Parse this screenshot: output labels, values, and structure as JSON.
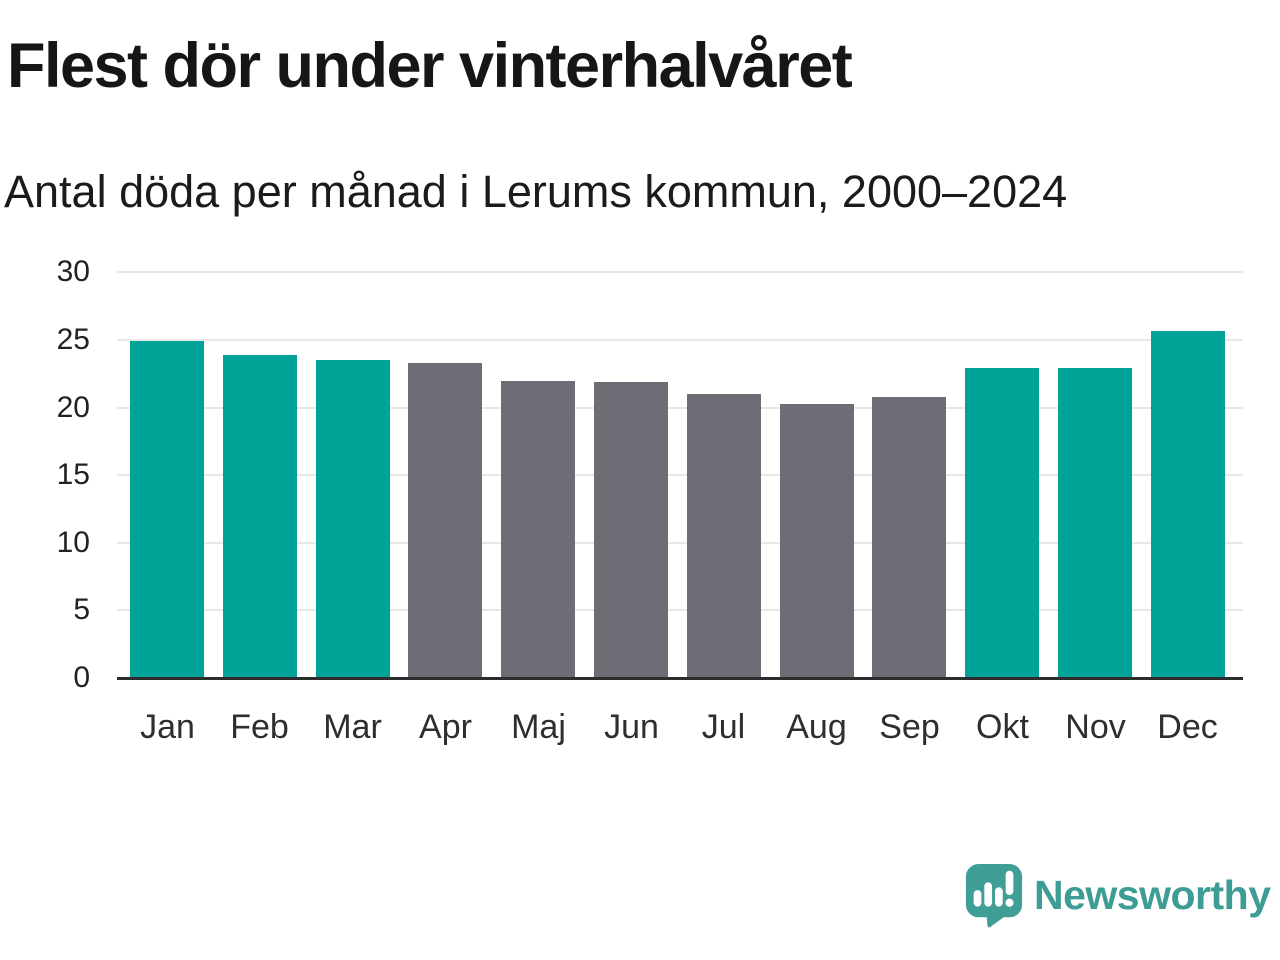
{
  "header": {
    "title": "Flest dör under vinterhalvåret",
    "subtitle": "Antal döda per månad i Lerums kommun, 2000–2024"
  },
  "chart_data": {
    "type": "bar",
    "categories": [
      "Jan",
      "Feb",
      "Mar",
      "Apr",
      "Maj",
      "Jun",
      "Jul",
      "Aug",
      "Sep",
      "Okt",
      "Nov",
      "Dec"
    ],
    "values": [
      24.9,
      23.9,
      23.5,
      23.3,
      22.0,
      21.9,
      21.0,
      20.3,
      20.8,
      22.9,
      22.9,
      25.7
    ],
    "bar_colors": [
      "teal",
      "teal",
      "teal",
      "gray",
      "gray",
      "gray",
      "gray",
      "gray",
      "gray",
      "teal",
      "teal",
      "teal"
    ],
    "colors": {
      "teal": "#00a398",
      "gray": "#6d6d75"
    },
    "y_ticks": [
      0,
      5,
      10,
      15,
      20,
      25,
      30
    ],
    "ylim": [
      0,
      30
    ],
    "xlabel": "",
    "ylabel": "",
    "grid": true,
    "legend": "none"
  },
  "footer": {
    "brand": "Newsworthy",
    "logo_icon": "newsworthy-speech-bubble-bar-chart-icon",
    "brand_color": "#3d9c94",
    "logo_fill": "#3f9e96"
  }
}
